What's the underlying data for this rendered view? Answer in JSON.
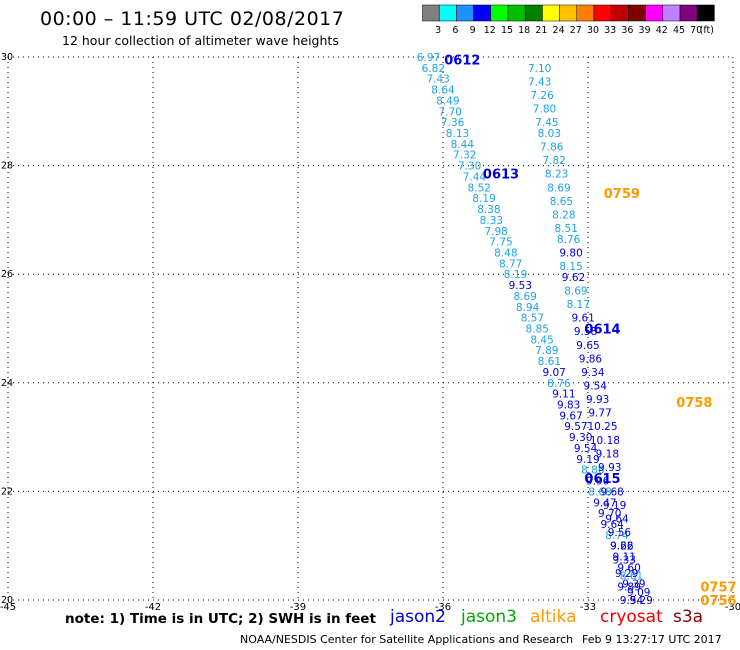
{
  "header": {
    "title": "00:00 – 11:59 UTC 02/08/2017",
    "subtitle": "12 hour collection of altimeter wave heights"
  },
  "legend": {
    "colors": [
      "#808080",
      "#00ffff",
      "#1e90ff",
      "#0000ff",
      "#00ff00",
      "#00c000",
      "#008000",
      "#ffff00",
      "#ffc000",
      "#ff8000",
      "#ff0000",
      "#c00000",
      "#800000",
      "#ff00ff",
      "#c080ff",
      "#800080",
      "#000000"
    ],
    "labels": [
      "3",
      "6",
      "9",
      "12",
      "15",
      "18",
      "21",
      "24",
      "27",
      "30",
      "33",
      "36",
      "39",
      "42",
      "45",
      "70",
      "(ft)"
    ]
  },
  "map": {
    "lon_ticks": [
      "-45",
      "-42",
      "-39",
      "-36",
      "-33",
      "-30"
    ],
    "lat_ticks": [
      "30",
      "28",
      "26",
      "24",
      "22",
      "20"
    ]
  },
  "colors": {
    "jason2": "#0000dd",
    "jason3": "#00aa00",
    "altika": "#ff9900",
    "cryosat": "#ee0000",
    "s3a": "#880000",
    "cyan": "#1aa3e6"
  },
  "time_labels": [
    {
      "text": "0612",
      "lon": -35.6,
      "lat": 29.95,
      "sat": "jason2"
    },
    {
      "text": "0613",
      "lon": -34.8,
      "lat": 27.85,
      "sat": "jason2"
    },
    {
      "text": "0614",
      "lon": -32.7,
      "lat": 25.0,
      "sat": "jason2"
    },
    {
      "text": "0615",
      "lon": -32.7,
      "lat": 22.25,
      "sat": "jason2"
    },
    {
      "text": "0759",
      "lon": -32.3,
      "lat": 27.5,
      "sat": "altika"
    },
    {
      "text": "0758",
      "lon": -30.8,
      "lat": 23.65,
      "sat": "altika"
    },
    {
      "text": "0757",
      "lon": -30.3,
      "lat": 20.25,
      "sat": "altika"
    },
    {
      "text": "0756",
      "lon": -30.3,
      "lat": 20.0,
      "sat": "altika"
    }
  ],
  "tracks": [
    {
      "name": "track-1",
      "points": [
        {
          "v": "6.97",
          "lon": -36.3,
          "lat": 30.0,
          "c": "cyan"
        },
        {
          "v": "6.82",
          "lon": -36.2,
          "lat": 29.8,
          "c": "cyan"
        },
        {
          "v": "7.43",
          "lon": -36.1,
          "lat": 29.6,
          "c": "cyan"
        },
        {
          "v": "8.64",
          "lon": -36.0,
          "lat": 29.4,
          "c": "cyan"
        },
        {
          "v": "8.49",
          "lon": -35.9,
          "lat": 29.2,
          "c": "cyan"
        },
        {
          "v": "7.70",
          "lon": -35.85,
          "lat": 29.0,
          "c": "cyan"
        },
        {
          "v": "7.36",
          "lon": -35.8,
          "lat": 28.8,
          "c": "cyan"
        },
        {
          "v": "8.13",
          "lon": -35.7,
          "lat": 28.6,
          "c": "cyan"
        },
        {
          "v": "8.44",
          "lon": -35.6,
          "lat": 28.4,
          "c": "cyan"
        },
        {
          "v": "7.32",
          "lon": -35.55,
          "lat": 28.2,
          "c": "cyan"
        },
        {
          "v": "7.30",
          "lon": -35.45,
          "lat": 28.0,
          "c": "cyan"
        },
        {
          "v": "7.44",
          "lon": -35.35,
          "lat": 27.8,
          "c": "cyan"
        },
        {
          "v": "8.52",
          "lon": -35.25,
          "lat": 27.6,
          "c": "cyan"
        },
        {
          "v": "8.19",
          "lon": -35.15,
          "lat": 27.4,
          "c": "cyan"
        },
        {
          "v": "8.38",
          "lon": -35.05,
          "lat": 27.2,
          "c": "cyan"
        },
        {
          "v": "8.33",
          "lon": -35.0,
          "lat": 27.0,
          "c": "cyan"
        },
        {
          "v": "7.98",
          "lon": -34.9,
          "lat": 26.8,
          "c": "cyan"
        },
        {
          "v": "7.75",
          "lon": -34.8,
          "lat": 26.6,
          "c": "cyan"
        },
        {
          "v": "8.48",
          "lon": -34.7,
          "lat": 26.4,
          "c": "cyan"
        },
        {
          "v": "8.77",
          "lon": -34.6,
          "lat": 26.2,
          "c": "cyan"
        },
        {
          "v": "8.19",
          "lon": -34.5,
          "lat": 26.0,
          "c": "cyan"
        },
        {
          "v": "9.53",
          "lon": -34.4,
          "lat": 25.8,
          "c": "jason2"
        },
        {
          "v": "8.69",
          "lon": -34.3,
          "lat": 25.6,
          "c": "cyan"
        },
        {
          "v": "8.94",
          "lon": -34.25,
          "lat": 25.4,
          "c": "cyan"
        },
        {
          "v": "8.57",
          "lon": -34.15,
          "lat": 25.2,
          "c": "cyan"
        },
        {
          "v": "8.85",
          "lon": -34.05,
          "lat": 25.0,
          "c": "cyan"
        },
        {
          "v": "8.45",
          "lon": -33.95,
          "lat": 24.8,
          "c": "cyan"
        },
        {
          "v": "7.89",
          "lon": -33.85,
          "lat": 24.6,
          "c": "cyan"
        },
        {
          "v": "8.61",
          "lon": -33.8,
          "lat": 24.4,
          "c": "cyan"
        },
        {
          "v": "9.07",
          "lon": -33.7,
          "lat": 24.2,
          "c": "jason2"
        },
        {
          "v": "8.76",
          "lon": -33.6,
          "lat": 24.0,
          "c": "cyan"
        },
        {
          "v": "9.11",
          "lon": -33.5,
          "lat": 23.8,
          "c": "jason2"
        },
        {
          "v": "9.83",
          "lon": -33.4,
          "lat": 23.6,
          "c": "jason2"
        },
        {
          "v": "9.67",
          "lon": -33.35,
          "lat": 23.4,
          "c": "jason2"
        },
        {
          "v": "9.57",
          "lon": -33.25,
          "lat": 23.2,
          "c": "jason2"
        },
        {
          "v": "9.30",
          "lon": -33.15,
          "lat": 23.0,
          "c": "jason2"
        },
        {
          "v": "9.54",
          "lon": -33.05,
          "lat": 22.8,
          "c": "jason2"
        },
        {
          "v": "9.19",
          "lon": -33.0,
          "lat": 22.6,
          "c": "jason2"
        },
        {
          "v": "8.86",
          "lon": -32.9,
          "lat": 22.4,
          "c": "cyan"
        },
        {
          "v": "9.96",
          "lon": -32.8,
          "lat": 22.2,
          "c": "jason2"
        },
        {
          "v": "8.68",
          "lon": -32.75,
          "lat": 22.0,
          "c": "cyan"
        },
        {
          "v": "9.47",
          "lon": -32.65,
          "lat": 21.8,
          "c": "jason2"
        },
        {
          "v": "9.70",
          "lon": -32.55,
          "lat": 21.6,
          "c": "jason2"
        },
        {
          "v": "9.64",
          "lon": -32.5,
          "lat": 21.4,
          "c": "jason2"
        },
        {
          "v": "8.74",
          "lon": -32.4,
          "lat": 21.2,
          "c": "cyan"
        },
        {
          "v": "9.22",
          "lon": -32.3,
          "lat": 21.0,
          "c": "jason2"
        },
        {
          "v": "9.11",
          "lon": -32.25,
          "lat": 20.8,
          "c": "jason2"
        },
        {
          "v": "9.60",
          "lon": -32.15,
          "lat": 20.6,
          "c": "jason2"
        },
        {
          "v": "8.61",
          "lon": -32.1,
          "lat": 20.45,
          "c": "cyan"
        },
        {
          "v": "9.39",
          "lon": -32.05,
          "lat": 20.3,
          "c": "jason2"
        },
        {
          "v": "9.09",
          "lon": -31.95,
          "lat": 20.15,
          "c": "jason2"
        },
        {
          "v": "9.29",
          "lon": -31.9,
          "lat": 20.0,
          "c": "jason2"
        }
      ]
    },
    {
      "name": "track-2",
      "points": [
        {
          "v": "7.10",
          "lon": -34.0,
          "lat": 29.8,
          "c": "cyan"
        },
        {
          "v": "7.43",
          "lon": -34.0,
          "lat": 29.55,
          "c": "cyan"
        },
        {
          "v": "7.26",
          "lon": -33.95,
          "lat": 29.3,
          "c": "cyan"
        },
        {
          "v": "7.80",
          "lon": -33.9,
          "lat": 29.05,
          "c": "cyan"
        },
        {
          "v": "7.45",
          "lon": -33.85,
          "lat": 28.8,
          "c": "cyan"
        },
        {
          "v": "8.03",
          "lon": -33.8,
          "lat": 28.6,
          "c": "cyan"
        },
        {
          "v": "7.86",
          "lon": -33.75,
          "lat": 28.35,
          "c": "cyan"
        },
        {
          "v": "7.82",
          "lon": -33.7,
          "lat": 28.1,
          "c": "cyan"
        },
        {
          "v": "8.23",
          "lon": -33.65,
          "lat": 27.85,
          "c": "cyan"
        },
        {
          "v": "8.69",
          "lon": -33.6,
          "lat": 27.6,
          "c": "cyan"
        },
        {
          "v": "8.65",
          "lon": -33.55,
          "lat": 27.35,
          "c": "cyan"
        },
        {
          "v": "8.28",
          "lon": -33.5,
          "lat": 27.1,
          "c": "cyan"
        },
        {
          "v": "8.51",
          "lon": -33.45,
          "lat": 26.85,
          "c": "cyan"
        },
        {
          "v": "8.76",
          "lon": -33.4,
          "lat": 26.65,
          "c": "cyan"
        },
        {
          "v": "9.80",
          "lon": -33.35,
          "lat": 26.4,
          "c": "jason2"
        },
        {
          "v": "8.15",
          "lon": -33.35,
          "lat": 26.15,
          "c": "cyan"
        },
        {
          "v": "9.62",
          "lon": -33.3,
          "lat": 25.95,
          "c": "jason2"
        },
        {
          "v": "8.69",
          "lon": -33.25,
          "lat": 25.7,
          "c": "cyan"
        },
        {
          "v": "8.17",
          "lon": -33.2,
          "lat": 25.45,
          "c": "cyan"
        },
        {
          "v": "9.61",
          "lon": -33.1,
          "lat": 25.2,
          "c": "jason2"
        },
        {
          "v": "9.58",
          "lon": -33.05,
          "lat": 24.95,
          "c": "jason2"
        },
        {
          "v": "9.65",
          "lon": -33.0,
          "lat": 24.7,
          "c": "jason2"
        },
        {
          "v": "9.86",
          "lon": -32.95,
          "lat": 24.45,
          "c": "jason2"
        },
        {
          "v": "9.34",
          "lon": -32.9,
          "lat": 24.2,
          "c": "jason2"
        },
        {
          "v": "9.54",
          "lon": -32.85,
          "lat": 23.95,
          "c": "jason2"
        },
        {
          "v": "9.93",
          "lon": -32.8,
          "lat": 23.7,
          "c": "jason2"
        },
        {
          "v": "9.77",
          "lon": -32.75,
          "lat": 23.45,
          "c": "jason2"
        },
        {
          "v": "10.25",
          "lon": -32.7,
          "lat": 23.2,
          "c": "jason2"
        },
        {
          "v": "10.18",
          "lon": -32.65,
          "lat": 22.95,
          "c": "jason2"
        },
        {
          "v": "9.18",
          "lon": -32.6,
          "lat": 22.7,
          "c": "jason2"
        },
        {
          "v": "9.93",
          "lon": -32.55,
          "lat": 22.45,
          "c": "jason2"
        },
        {
          "v": "9.68",
          "lon": -32.5,
          "lat": 22.0,
          "c": "jason2"
        },
        {
          "v": "9.19",
          "lon": -32.45,
          "lat": 21.75,
          "c": "jason2"
        },
        {
          "v": "9.64",
          "lon": -32.4,
          "lat": 21.5,
          "c": "jason2"
        },
        {
          "v": "9.56",
          "lon": -32.35,
          "lat": 21.25,
          "c": "jason2"
        },
        {
          "v": "9.66",
          "lon": -32.3,
          "lat": 21.0,
          "c": "jason2"
        },
        {
          "v": "9.33",
          "lon": -32.25,
          "lat": 20.75,
          "c": "jason2"
        },
        {
          "v": "9.29",
          "lon": -32.2,
          "lat": 20.5,
          "c": "jason2"
        },
        {
          "v": "9.89",
          "lon": -32.15,
          "lat": 20.25,
          "c": "jason2"
        },
        {
          "v": "9.54",
          "lon": -32.1,
          "lat": 20.0,
          "c": "jason2"
        }
      ]
    }
  ],
  "footer": {
    "note": "note: 1) Time is in UTC; 2) SWH is in feet",
    "satellites": [
      "jason2",
      "jason3",
      "altika",
      "cryosat",
      "s3a"
    ],
    "credit": "NOAA/NESDIS Center for Satellite Applications and Research",
    "timestamp": "Feb  9 13:27:17 UTC 2017"
  }
}
